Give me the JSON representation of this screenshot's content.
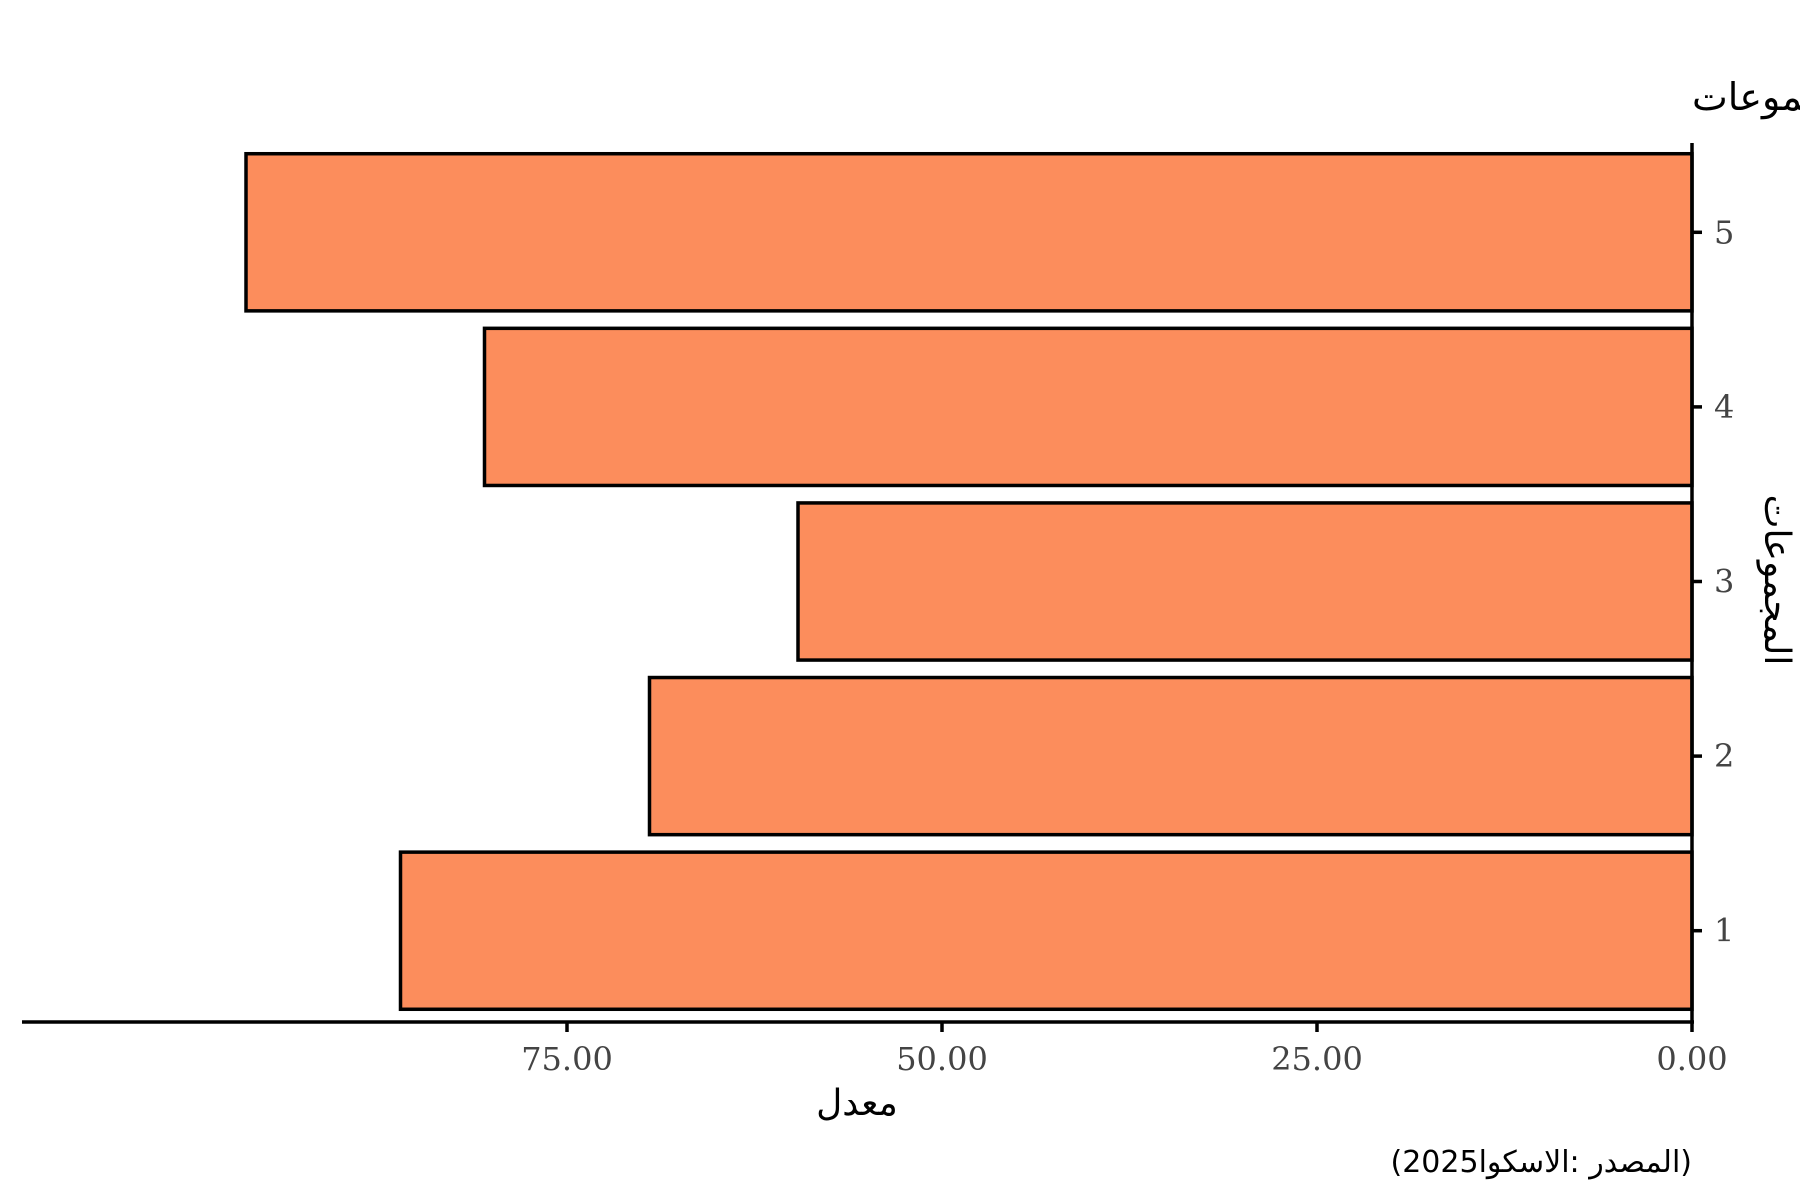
{
  "chart_data": {
    "type": "bar",
    "orientation": "horizontal",
    "x_direction": "reversed",
    "title": "عن طريق المجموعات",
    "xlabel": "معدل",
    "ylabel": "المجموعات",
    "caption": "(2025المصدر :الاسكوا)",
    "categories": [
      "1",
      "2",
      "3",
      "4",
      "5"
    ],
    "values": [
      86.1,
      69.5,
      59.6,
      80.5,
      96.4
    ],
    "xlim": [
      0,
      102.4
    ],
    "xticks": [
      0,
      25,
      50,
      75
    ],
    "xtick_labels": [
      "0.00",
      "25.00",
      "50.00",
      "75.00"
    ],
    "bar_color": "#FC8D5C",
    "bar_edge_color": "#000000",
    "grid": false,
    "legend": "none"
  }
}
